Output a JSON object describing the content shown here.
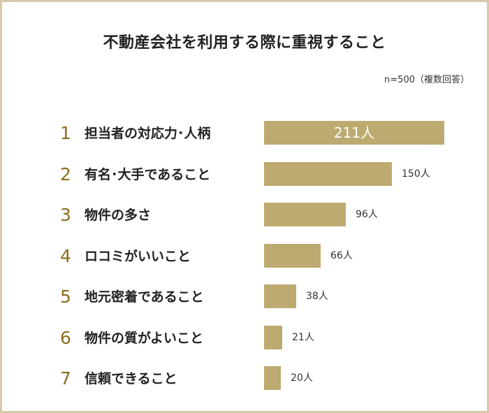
{
  "chart_data": {
    "type": "bar",
    "orientation": "horizontal",
    "title": "不動産会社を利用する際に重視すること",
    "note": "n=500（複数回答）",
    "unit": "人",
    "categories": [
      "担当者の対応力･人柄",
      "有名･大手であること",
      "物件の多さ",
      "ロコミがいいこと",
      "地元密着であること",
      "物件の質がよいこと",
      "信頼できること"
    ],
    "ranks": [
      "1",
      "2",
      "3",
      "4",
      "5",
      "6",
      "7"
    ],
    "values": [
      211,
      150,
      96,
      66,
      38,
      21,
      20
    ],
    "value_labels": [
      "211人",
      "150人",
      "96人",
      "66人",
      "38人",
      "21人",
      "20人"
    ],
    "xlim": [
      0,
      211
    ],
    "grid": false,
    "legend": "none",
    "bar_color": "#bdaa70",
    "rank_color": "#8a6d1f"
  }
}
